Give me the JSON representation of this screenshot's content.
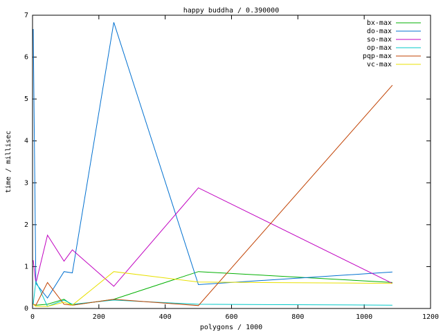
{
  "chart_data": {
    "type": "line",
    "title": "happy buddha / 0.390000",
    "x_label": "polygons / 1000",
    "y_label": "time / millisec",
    "x": [
      2,
      10,
      45,
      95,
      120,
      245,
      500,
      1085
    ],
    "series": [
      {
        "name": "bx-max",
        "color": "#00b000",
        "values": [
          0.1,
          0.08,
          0.1,
          0.22,
          0.08,
          0.22,
          0.88,
          0.62
        ]
      },
      {
        "name": "do-max",
        "color": "#0070d0",
        "values": [
          6.67,
          0.6,
          0.25,
          0.88,
          0.85,
          6.83,
          0.57,
          0.87
        ]
      },
      {
        "name": "so-max",
        "color": "#c000c0",
        "values": [
          1.15,
          0.6,
          1.75,
          1.13,
          1.4,
          0.53,
          2.88,
          0.6
        ]
      },
      {
        "name": "op-max",
        "color": "#00c8c8",
        "values": [
          0.1,
          0.65,
          0.05,
          0.2,
          0.1,
          0.2,
          0.1,
          0.08
        ]
      },
      {
        "name": "pqp-max",
        "color": "#c04000",
        "values": [
          0.1,
          0.08,
          0.62,
          0.1,
          0.08,
          0.22,
          0.07,
          5.33
        ]
      },
      {
        "name": "vc-max",
        "color": "#e8e000",
        "values": [
          0.1,
          0.05,
          0.05,
          0.15,
          0.08,
          0.88,
          0.63,
          0.6
        ]
      }
    ],
    "xlim": [
      0,
      1200
    ],
    "xticks": [
      0,
      200,
      400,
      600,
      800,
      1000,
      1200
    ],
    "ylim": [
      0,
      7
    ],
    "yticks": [
      0,
      1,
      2,
      3,
      4,
      5,
      6,
      7
    ],
    "legend": "top-right",
    "grid": false
  }
}
